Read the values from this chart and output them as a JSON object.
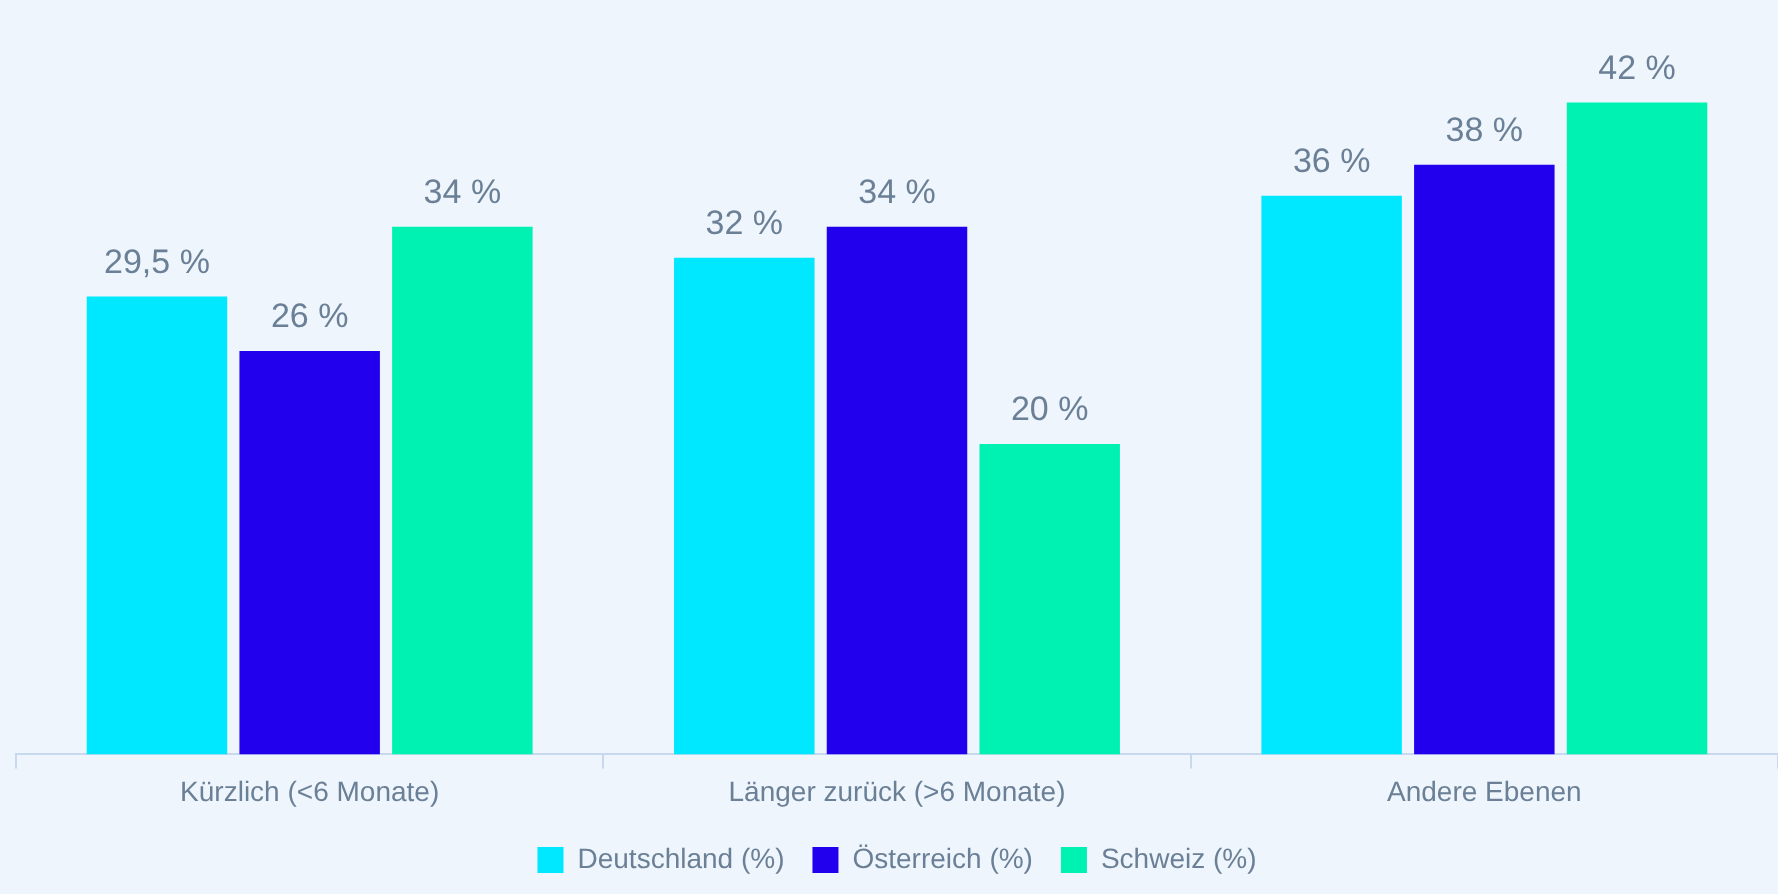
{
  "chart_data": {
    "type": "bar",
    "categories": [
      "Kürzlich (<6 Monate)",
      "Länger zurück (>6 Monate)",
      "Andere Ebenen"
    ],
    "series": [
      {
        "name": "Deutschland (%)",
        "color": "#00e8ff",
        "values": [
          29.5,
          32,
          36
        ],
        "value_labels": [
          "29,5 %",
          "32 %",
          "36 %"
        ]
      },
      {
        "name": "Österreich (%)",
        "color": "#2200ee",
        "values": [
          26,
          34,
          38
        ],
        "value_labels": [
          "26 %",
          "34 %",
          "38 %"
        ]
      },
      {
        "name": "Schweiz (%)",
        "color": "#00f2b2",
        "values": [
          34,
          20,
          42
        ],
        "value_labels": [
          "34 %",
          "20 %",
          "42 %"
        ]
      }
    ],
    "legend": "bottom",
    "grid": false
  }
}
